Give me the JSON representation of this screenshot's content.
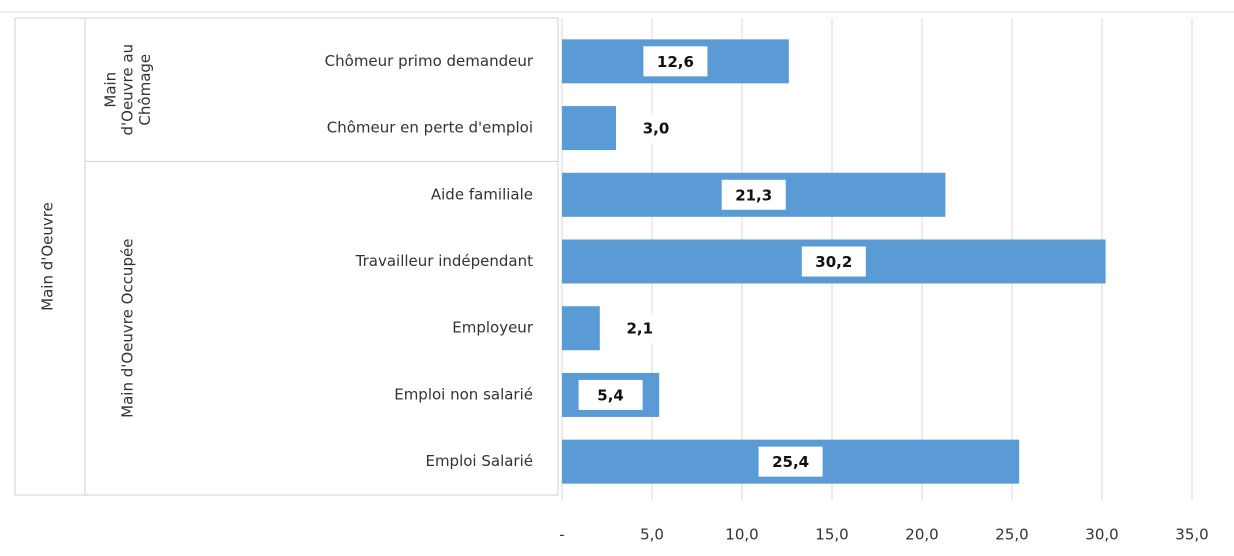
{
  "chart_data": {
    "type": "bar",
    "orientation": "horizontal",
    "color": "#5b9bd5",
    "group_label": "Main d'Oeuvre",
    "groups": [
      {
        "name": "Main d'Oeuvre au Chômage",
        "categories": [
          "Chômeur primo demandeur",
          "Chômeur en perte d'emploi"
        ],
        "values": [
          12.6,
          3.0
        ],
        "value_labels": [
          "12,6",
          "3,0"
        ]
      },
      {
        "name": "Main d'Oeuvre Occupée",
        "categories": [
          "Aide familiale",
          "Travailleur indépendant",
          "Employeur",
          "Emploi non salarié",
          "Emploi Salarié"
        ],
        "values": [
          21.3,
          30.2,
          2.1,
          5.4,
          25.4
        ],
        "value_labels": [
          "21,3",
          "30,2",
          "2,1",
          "5,4",
          "25,4"
        ]
      }
    ],
    "xlim": [
      0,
      37
    ],
    "xticks": [
      {
        "value": 0,
        "label": "-"
      },
      {
        "value": 5,
        "label": "5,0"
      },
      {
        "value": 10,
        "label": "10,0"
      },
      {
        "value": 15,
        "label": "15,0"
      },
      {
        "value": 20,
        "label": "20,0"
      },
      {
        "value": 25,
        "label": "25,0"
      },
      {
        "value": 30,
        "label": "30,0"
      },
      {
        "value": 35,
        "label": "35,0"
      }
    ],
    "grid": true
  }
}
